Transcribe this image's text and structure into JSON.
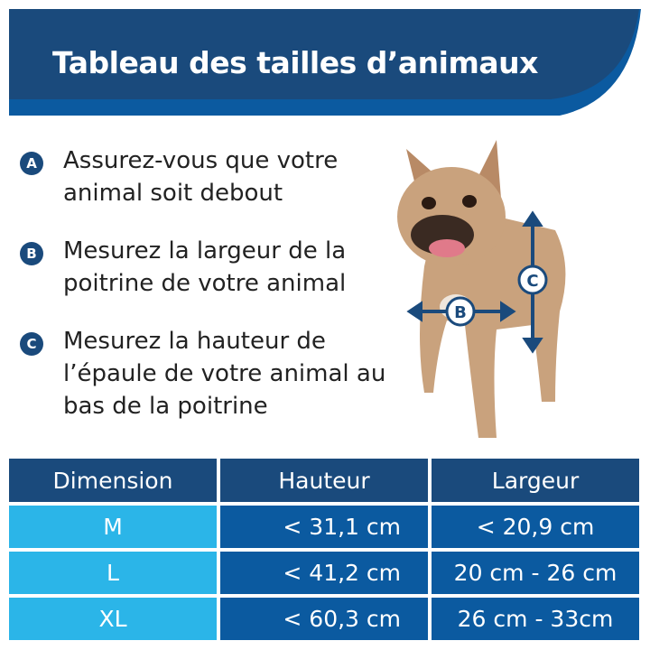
{
  "title": "Tableau des tailles d’animaux",
  "colors": {
    "dark_blue": "#1a4a7c",
    "mid_blue": "#0b5aa0",
    "light_blue": "#2bb5e8"
  },
  "steps": [
    {
      "badge": "A",
      "text": "Assurez-vous que votre animal soit debout"
    },
    {
      "badge": "B",
      "text": "Mesurez la largeur de la poitrine de votre animal"
    },
    {
      "badge": "C",
      "text": "Mesurez la hauteur de l’épaule de votre animal au bas de la poitrine"
    }
  ],
  "dog_labels": {
    "width": "B",
    "height": "C"
  },
  "table": {
    "headers": [
      "Dimension",
      "Hauteur",
      "Largeur"
    ],
    "rows": [
      [
        "M",
        "< 31,1 cm",
        "< 20,9 cm"
      ],
      [
        "L",
        "< 41,2 cm",
        "20 cm - 26 cm"
      ],
      [
        "XL",
        "< 60,3 cm",
        "26 cm - 33cm"
      ]
    ]
  }
}
